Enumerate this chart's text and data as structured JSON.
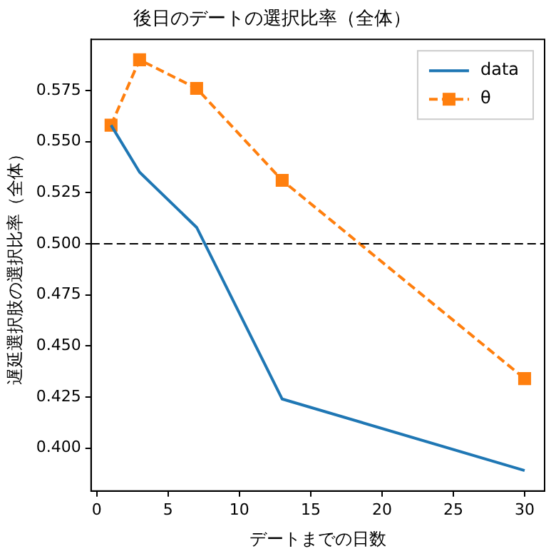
{
  "chart_data": {
    "type": "line",
    "title": "後日のデートの選択比率（全体）",
    "xlabel": "デートまでの日数",
    "ylabel": "遅延選択肢の選択比率（全体）",
    "x": [
      1,
      3,
      7,
      13,
      30
    ],
    "series": [
      {
        "name": "data",
        "color": "#1f77b4",
        "values": [
          0.558,
          0.535,
          0.508,
          0.424,
          0.389
        ],
        "marker": "none",
        "line_style": "solid"
      },
      {
        "name": "θ",
        "color": "#ff7f0e",
        "values": [
          0.558,
          0.59,
          0.576,
          0.531,
          0.434
        ],
        "marker": "square",
        "line_style": "dashed"
      }
    ],
    "xlim": [
      -0.4,
      31.4
    ],
    "xticks": [
      0,
      5,
      10,
      15,
      20,
      25,
      30
    ],
    "ylim": [
      0.379,
      0.6
    ],
    "yticks": [
      {
        "value": 0.4,
        "label": "0.400"
      },
      {
        "value": 0.425,
        "label": "0.425"
      },
      {
        "value": 0.45,
        "label": "0.450"
      },
      {
        "value": 0.475,
        "label": "0.475"
      },
      {
        "value": 0.5,
        "label": "0.500"
      },
      {
        "value": 0.525,
        "label": "0.525"
      },
      {
        "value": 0.55,
        "label": "0.550"
      },
      {
        "value": 0.575,
        "label": "0.575"
      }
    ],
    "ref_lines": [
      {
        "axis": "y",
        "value": 0.5,
        "color": "#000000",
        "line_style": "dashed"
      }
    ],
    "grid": false,
    "legend": "top right"
  }
}
